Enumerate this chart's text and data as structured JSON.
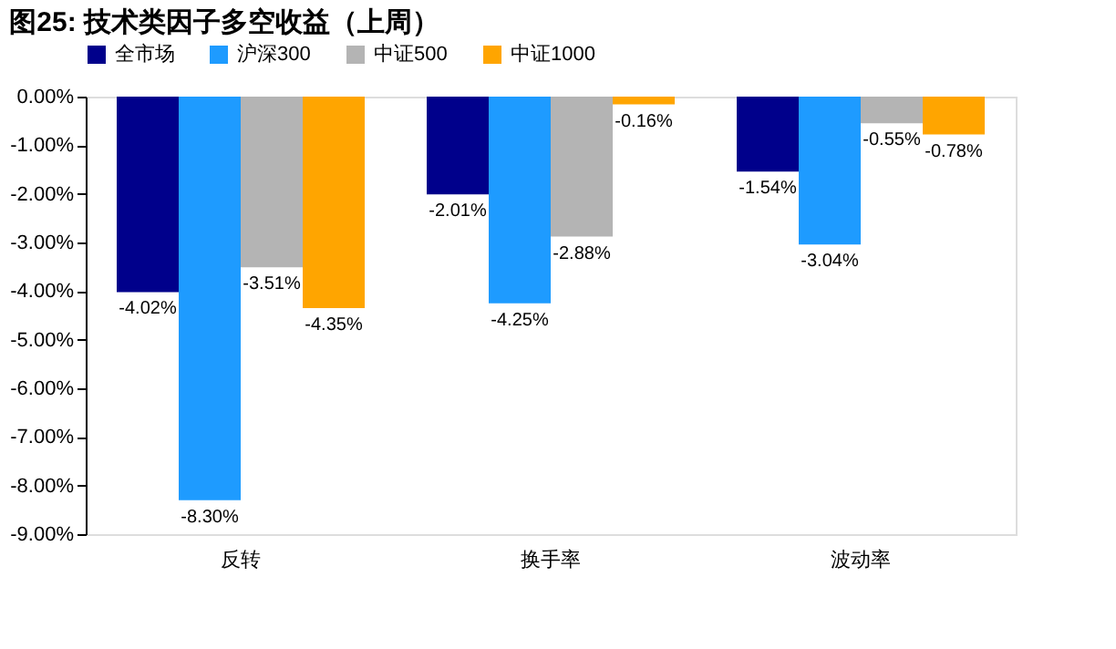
{
  "chart_data": {
    "type": "bar",
    "title": "图25:  技术类因子多空收益（上周）",
    "categories": [
      "反转",
      "换手率",
      "波动率"
    ],
    "series": [
      {
        "name": "全市场",
        "color": "#00008b",
        "values": [
          -4.02,
          -2.01,
          -1.54
        ],
        "value_labels": [
          "-4.02%",
          "-2.01%",
          "-1.54%"
        ]
      },
      {
        "name": "沪深300",
        "color": "#1e9bff",
        "values": [
          -8.3,
          -4.25,
          -3.04
        ],
        "value_labels": [
          "-8.30%",
          "-4.25%",
          "-3.04%"
        ]
      },
      {
        "name": "中证500",
        "color": "#b4b4b4",
        "values": [
          -3.51,
          -2.88,
          -0.55
        ],
        "value_labels": [
          "-3.51%",
          "-2.88%",
          "-0.55%"
        ]
      },
      {
        "name": "中证1000",
        "color": "#ffa500",
        "values": [
          -4.35,
          -0.16,
          -0.78
        ],
        "value_labels": [
          "-4.35%",
          "-0.16%",
          "-0.78%"
        ]
      }
    ],
    "ylim": [
      -9,
      0
    ],
    "yticks": [
      {
        "value": 0,
        "label": "0.00%"
      },
      {
        "value": -1,
        "label": "-1.00%"
      },
      {
        "value": -2,
        "label": "-2.00%"
      },
      {
        "value": -3,
        "label": "-3.00%"
      },
      {
        "value": -4,
        "label": "-4.00%"
      },
      {
        "value": -5,
        "label": "-5.00%"
      },
      {
        "value": -6,
        "label": "-6.00%"
      },
      {
        "value": -7,
        "label": "-7.00%"
      },
      {
        "value": -8,
        "label": "-8.00%"
      },
      {
        "value": -9,
        "label": "-9.00%"
      }
    ],
    "grid": false,
    "legend": "top"
  }
}
